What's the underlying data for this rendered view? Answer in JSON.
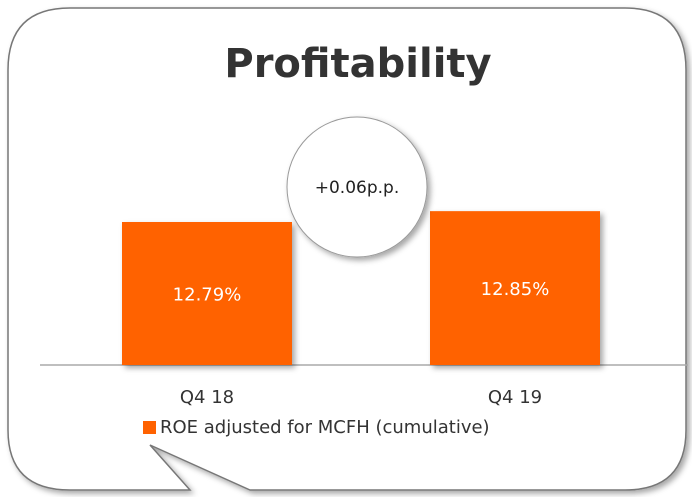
{
  "chart_data": {
    "type": "bar",
    "title": "Profitability",
    "categories": [
      "Q4 18",
      "Q4 19"
    ],
    "series": [
      {
        "name": "ROE adjusted for MCFH (cumulative)",
        "color": "#ff6200",
        "values": [
          12.79,
          12.85
        ],
        "value_labels": [
          "12.79%",
          "12.85%"
        ]
      }
    ],
    "annotation": "+0.06p.p.",
    "ylim": [
      12,
      13
    ]
  }
}
